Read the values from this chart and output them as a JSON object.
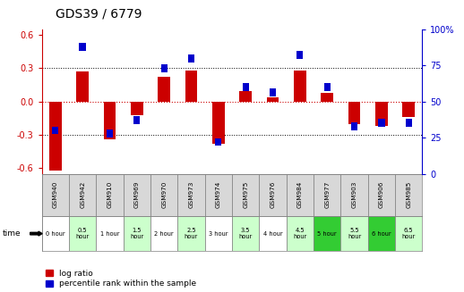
{
  "title": "GDS39 / 6779",
  "samples": [
    "GSM940",
    "GSM942",
    "GSM910",
    "GSM969",
    "GSM970",
    "GSM973",
    "GSM974",
    "GSM975",
    "GSM976",
    "GSM984",
    "GSM977",
    "GSM903",
    "GSM906",
    "GSM985"
  ],
  "times": [
    "0 hour",
    "0.5\nhour",
    "1 hour",
    "1.5\nhour",
    "2 hour",
    "2.5\nhour",
    "3 hour",
    "3.5\nhour",
    "4 hour",
    "4.5\nhour",
    "5 hour",
    "5.5\nhour",
    "6 hour",
    "6.5\nhour"
  ],
  "log_ratio": [
    -0.62,
    0.27,
    -0.34,
    -0.12,
    0.22,
    0.28,
    -0.38,
    0.09,
    0.04,
    0.28,
    0.08,
    -0.2,
    -0.22,
    -0.14
  ],
  "percentile": [
    30,
    88,
    28,
    37,
    73,
    80,
    22,
    60,
    56,
    82,
    60,
    33,
    35,
    35
  ],
  "time_bg_colors": [
    "#ffffff",
    "#ccffcc",
    "#ffffff",
    "#ccffcc",
    "#ffffff",
    "#ccffcc",
    "#ffffff",
    "#ccffcc",
    "#ffffff",
    "#ccffcc",
    "#33cc33",
    "#ccffcc",
    "#33cc33",
    "#ccffcc"
  ],
  "ylim_left": [
    -0.65,
    0.65
  ],
  "ylim_right": [
    0,
    100
  ],
  "yticks_left": [
    -0.6,
    -0.3,
    0.0,
    0.3,
    0.6
  ],
  "yticks_right": [
    0,
    25,
    50,
    75,
    100
  ],
  "bar_color_red": "#cc0000",
  "bar_color_blue": "#0000cc",
  "legend_red": "log ratio",
  "legend_blue": "percentile rank within the sample",
  "grid_color": "#888888",
  "title_fontsize": 10,
  "tick_fontsize": 7,
  "bar_width": 0.45
}
